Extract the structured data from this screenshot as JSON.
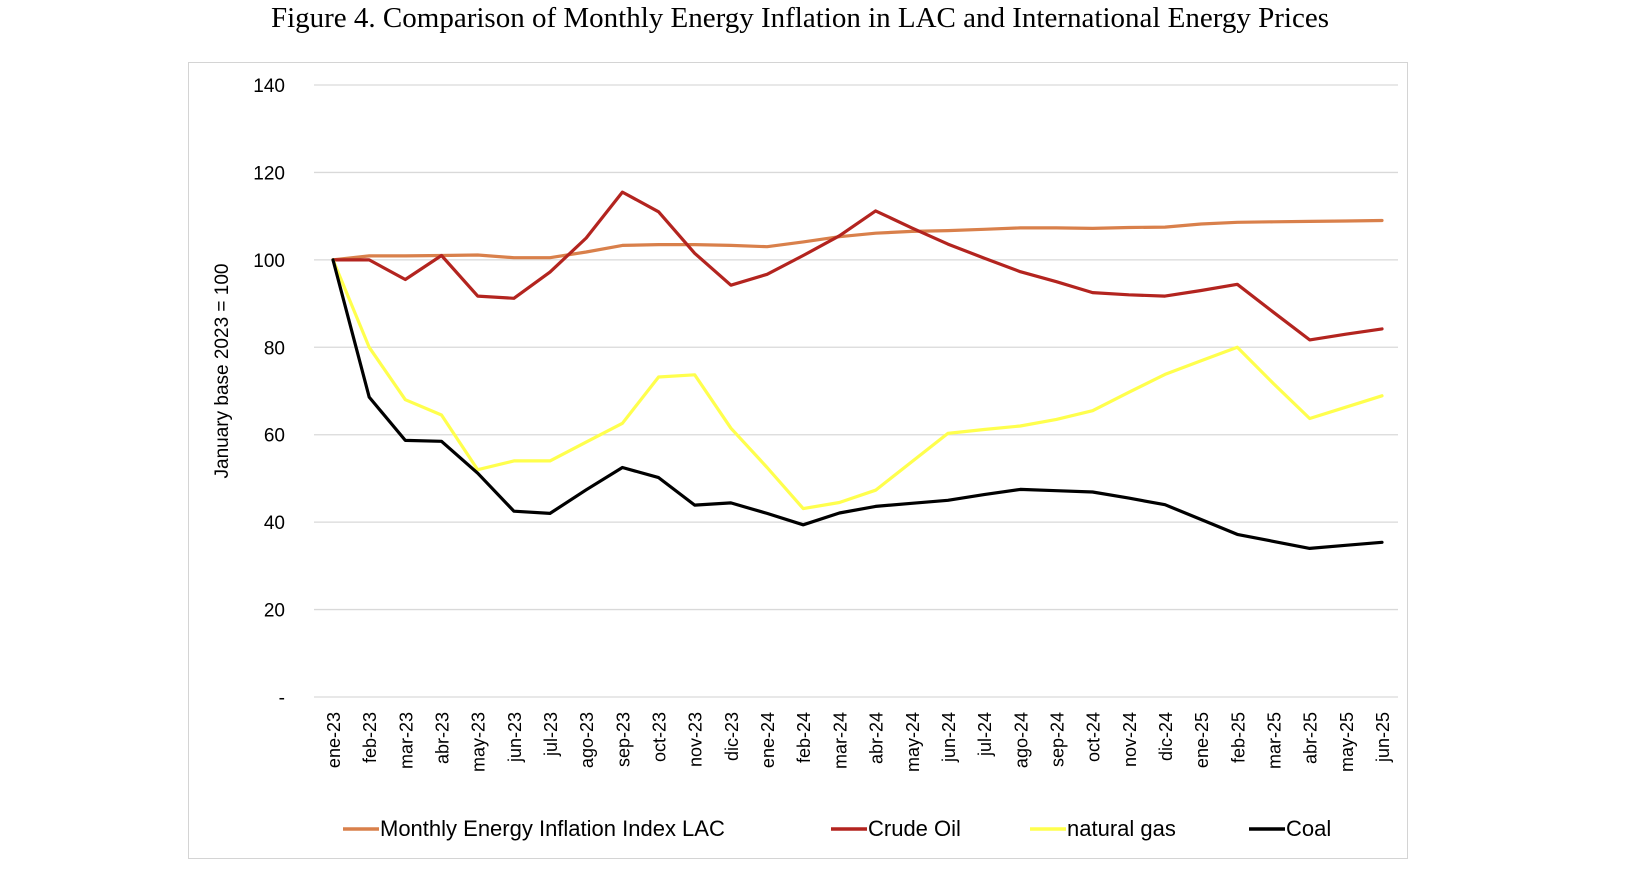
{
  "title": "Figure 4. Comparison of Monthly Energy Inflation in LAC and International Energy Prices",
  "chart_data": {
    "type": "line",
    "title": "Figure 4. Comparison of Monthly Energy Inflation in LAC and International Energy Prices",
    "xlabel": "",
    "ylabel": "January base 2023 = 100",
    "ylim": [
      0,
      140
    ],
    "yticks": [
      0,
      20,
      40,
      60,
      80,
      100,
      120,
      140
    ],
    "ytick_labels": [
      "-",
      "20",
      "40",
      "60",
      "80",
      "100",
      "120",
      "140"
    ],
    "grid": "horizontal",
    "legend_position": "bottom",
    "categories": [
      "ene-23",
      "feb-23",
      "mar-23",
      "abr-23",
      "may-23",
      "jun-23",
      "jul-23",
      "ago-23",
      "sep-23",
      "oct-23",
      "nov-23",
      "dic-23",
      "ene-24",
      "feb-24",
      "mar-24",
      "abr-24",
      "may-24",
      "jun-24",
      "jul-24",
      "ago-24",
      "sep-24",
      "oct-24",
      "nov-24",
      "dic-24",
      "ene-25",
      "feb-25",
      "mar-25",
      "abr-25",
      "may-25",
      "jun-25"
    ],
    "series": [
      {
        "name": "Monthly Energy Inflation Index LAC",
        "color": "#d9804b",
        "values": [
          100,
          100.9,
          100.9,
          101.0,
          101.1,
          100.5,
          100.5,
          101.8,
          103.3,
          103.5,
          103.5,
          103.3,
          103.0,
          104.1,
          105.3,
          106.1,
          106.5,
          106.7,
          107.0,
          107.3,
          107.3,
          107.2,
          107.4,
          107.5,
          108.2,
          108.6,
          108.7,
          108.8,
          108.9,
          109.0
        ]
      },
      {
        "name": "Crude Oil",
        "color": "#b3241f",
        "values": [
          100,
          100.0,
          95.5,
          101.0,
          91.7,
          91.2,
          97.2,
          105.0,
          115.5,
          111.0,
          101.5,
          94.2,
          96.7,
          101.0,
          105.5,
          111.2,
          107.3,
          103.6,
          100.4,
          97.3,
          95.0,
          92.5,
          92.0,
          91.7,
          93.0,
          94.4,
          88.0,
          81.7,
          83.0,
          84.2
        ]
      },
      {
        "name": "natural gas",
        "color": "#ffff4d",
        "values": [
          100,
          80.0,
          68.0,
          64.5,
          52.0,
          54.0,
          54.0,
          58.3,
          62.6,
          73.2,
          73.7,
          61.5,
          52.5,
          43.1,
          44.5,
          47.3,
          53.8,
          60.3,
          61.2,
          62.0,
          63.5,
          65.5,
          69.7,
          73.8,
          76.9,
          80.0,
          71.7,
          63.7,
          66.3,
          68.9
        ]
      },
      {
        "name": "Coal",
        "color": "#000000",
        "values": [
          100,
          68.6,
          58.7,
          58.5,
          51.2,
          42.5,
          42.0,
          47.4,
          52.5,
          50.2,
          43.9,
          44.4,
          42.0,
          39.4,
          42.1,
          43.6,
          44.3,
          45.0,
          46.3,
          47.5,
          47.2,
          46.9,
          45.5,
          44.0,
          40.6,
          37.2,
          35.6,
          34.0,
          34.7,
          35.4
        ]
      }
    ]
  }
}
